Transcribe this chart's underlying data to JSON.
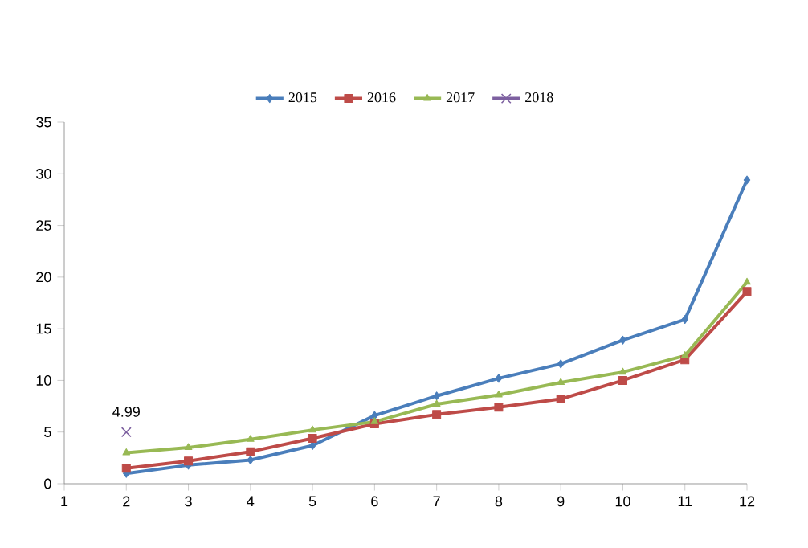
{
  "chart_data": {
    "type": "line",
    "x": [
      2,
      3,
      4,
      5,
      6,
      7,
      8,
      9,
      10,
      11,
      12
    ],
    "series": [
      {
        "name": "2015",
        "color": "#4a7ebb",
        "marker": "diamond",
        "values": [
          1.0,
          1.8,
          2.3,
          3.7,
          6.6,
          8.5,
          10.2,
          11.6,
          13.9,
          15.9,
          29.4
        ]
      },
      {
        "name": "2016",
        "color": "#be4b48",
        "marker": "square",
        "values": [
          1.5,
          2.2,
          3.1,
          4.4,
          5.8,
          6.7,
          7.4,
          8.2,
          10.0,
          12.0,
          18.6
        ]
      },
      {
        "name": "2017",
        "color": "#98b954",
        "marker": "triangle",
        "values": [
          3.0,
          3.5,
          4.3,
          5.2,
          6.0,
          7.7,
          8.6,
          9.8,
          10.8,
          12.4,
          19.5
        ]
      },
      {
        "name": "2018",
        "color": "#7d60a0",
        "marker": "cross",
        "x": [
          2
        ],
        "values": [
          4.99
        ],
        "value_labels": [
          "4.99"
        ]
      }
    ],
    "xlim": [
      1,
      12
    ],
    "xticks": [
      1,
      2,
      3,
      4,
      5,
      6,
      7,
      8,
      9,
      10,
      11,
      12
    ],
    "ylim": [
      0,
      35
    ],
    "yticks": [
      0,
      5,
      10,
      15,
      20,
      25,
      30,
      35
    ],
    "grid": false,
    "legend": "top",
    "line_style": "solid"
  }
}
